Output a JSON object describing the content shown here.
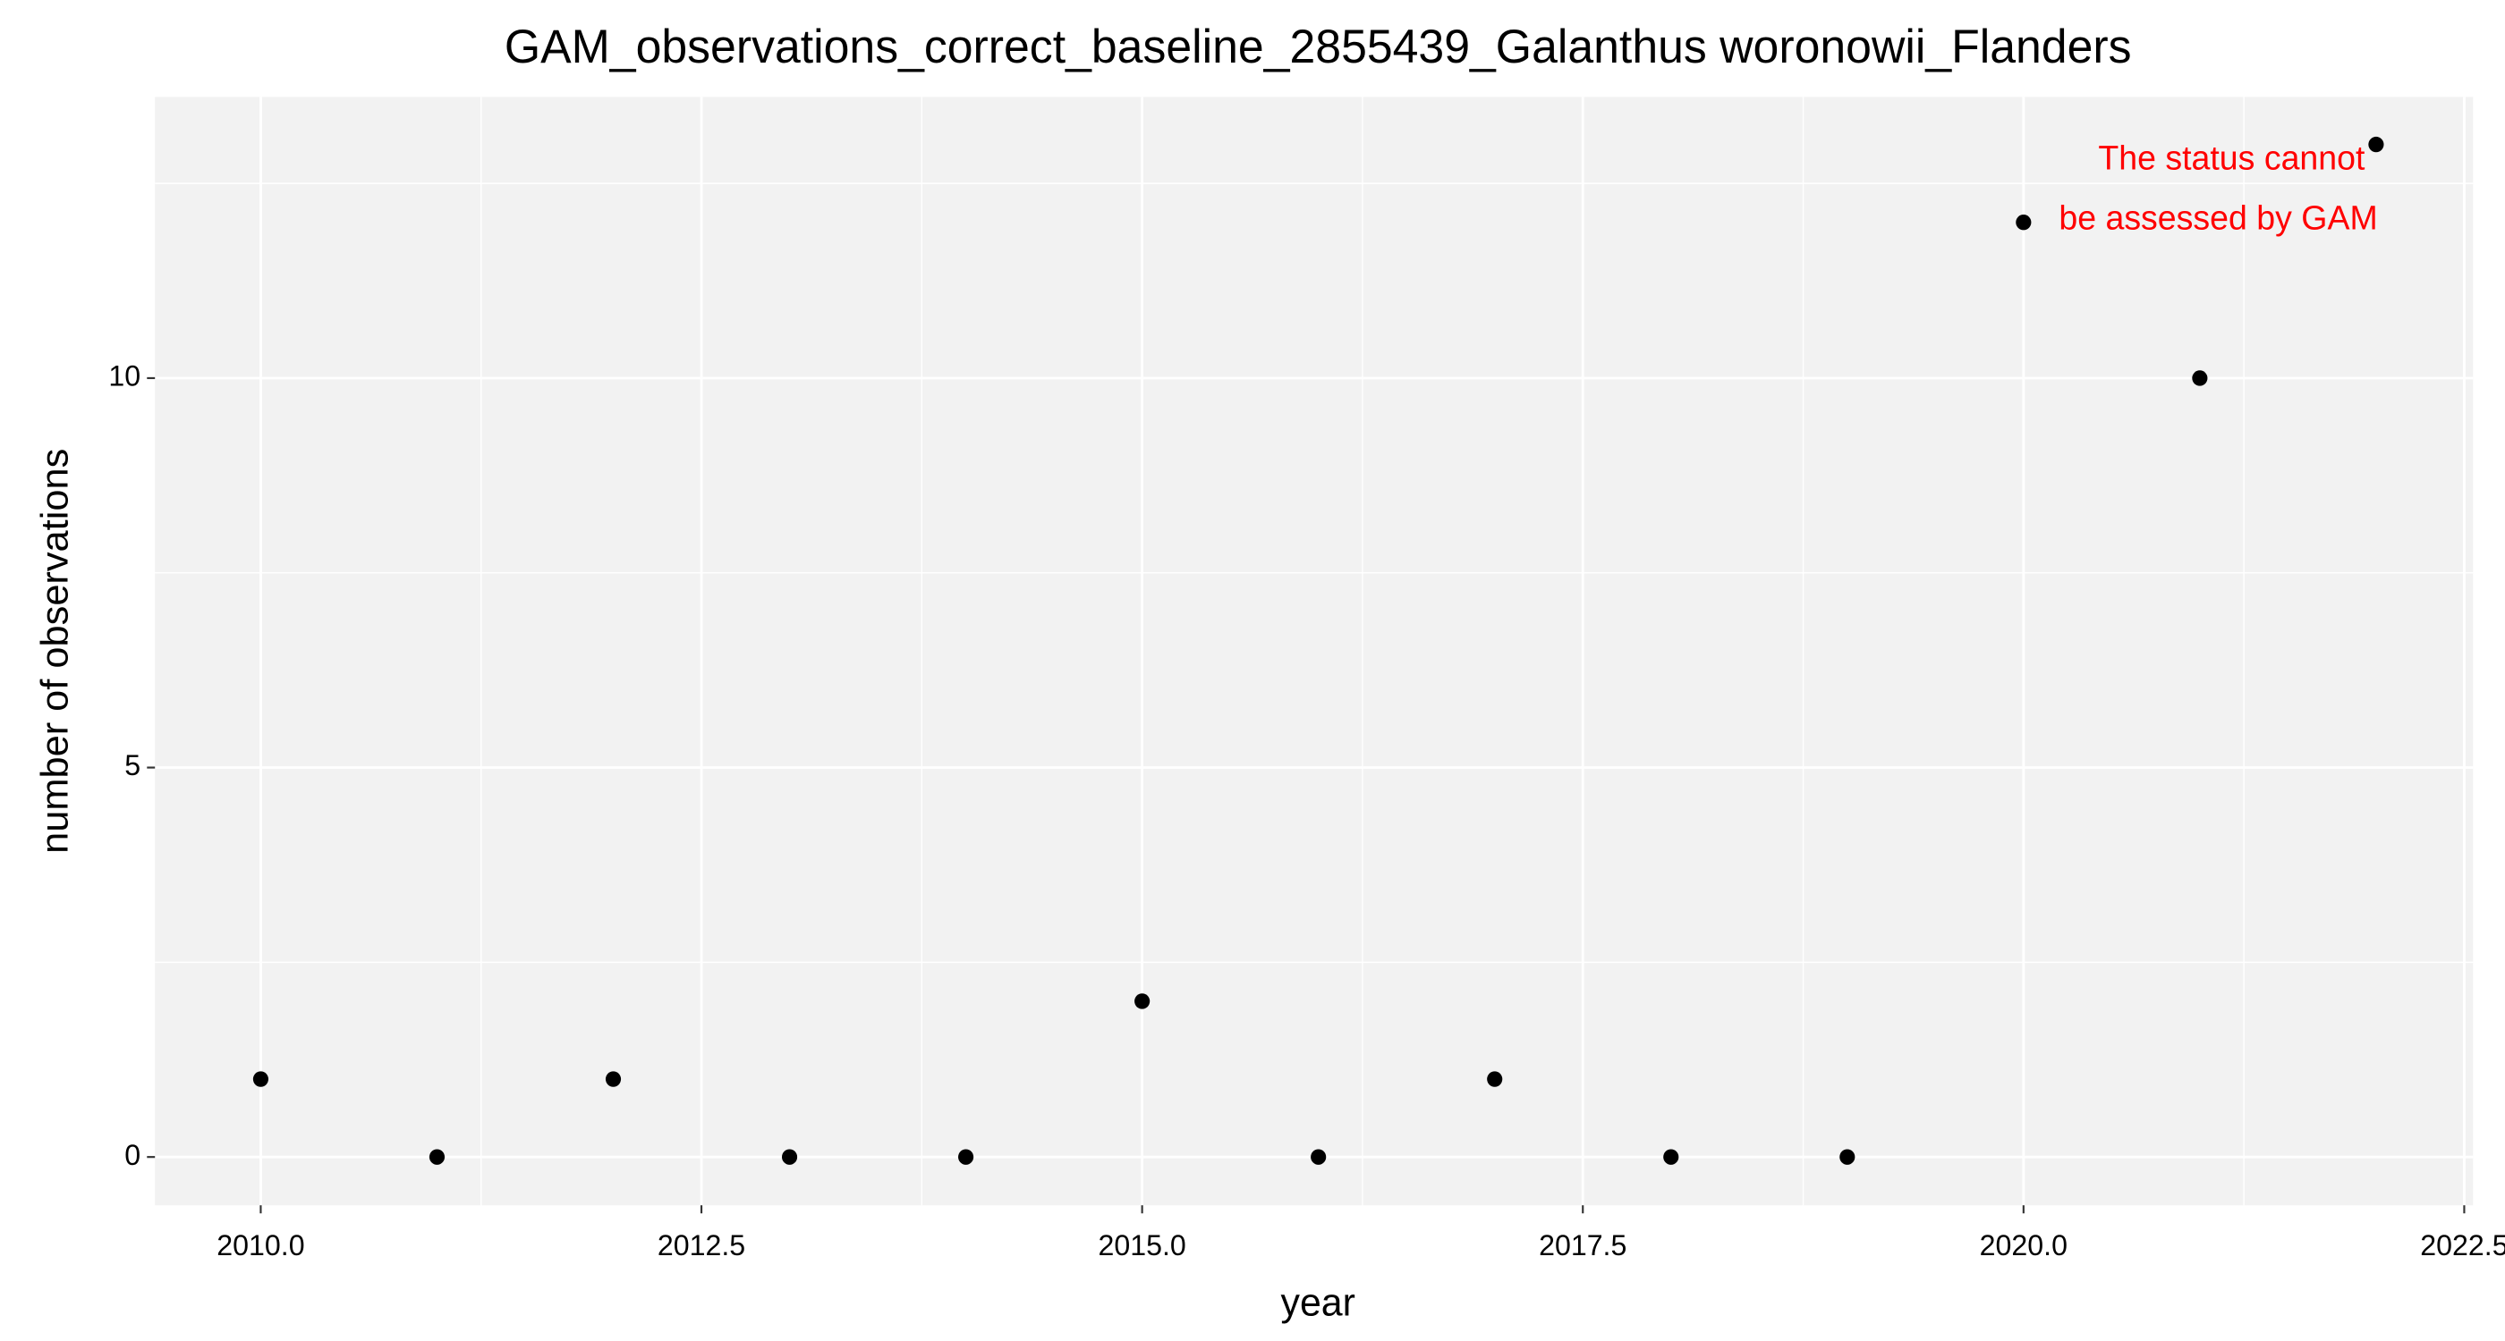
{
  "chart_data": {
    "type": "scatter",
    "title": "GAM_observations_correct_baseline_2855439_Galanthus woronowii_Flanders",
    "x_label": "year",
    "y_label": "number of observations",
    "x": [
      2010,
      2011,
      2012,
      2013,
      2014,
      2015,
      2016,
      2017,
      2018,
      2019,
      2020,
      2021,
      2022
    ],
    "series": [
      {
        "color": "#000000",
        "values": [
          1,
          0,
          1,
          0,
          0,
          2,
          0,
          1,
          0,
          0,
          12,
          10,
          13
        ]
      }
    ],
    "xlim": [
      2009.4,
      2022.55
    ],
    "ylim": [
      -0.62,
      13.61
    ],
    "xticks": [
      {
        "value": 2010,
        "label": "2010.0"
      },
      2012.5,
      {
        "value": 2015,
        "label": "2015.0"
      },
      2017.5,
      {
        "value": 2020,
        "label": "2020.0"
      },
      2022.5
    ],
    "yticks": [
      0,
      5,
      10
    ],
    "xminor": [
      2011.25,
      2013.75,
      2016.25,
      2018.75,
      2021.25
    ],
    "yminor": [
      2.5,
      7.5,
      12.5
    ],
    "grid": true,
    "annotation": {
      "lines": [
        "The status cannot",
        "be assessed by GAM"
      ],
      "color": "#ff0000"
    }
  }
}
